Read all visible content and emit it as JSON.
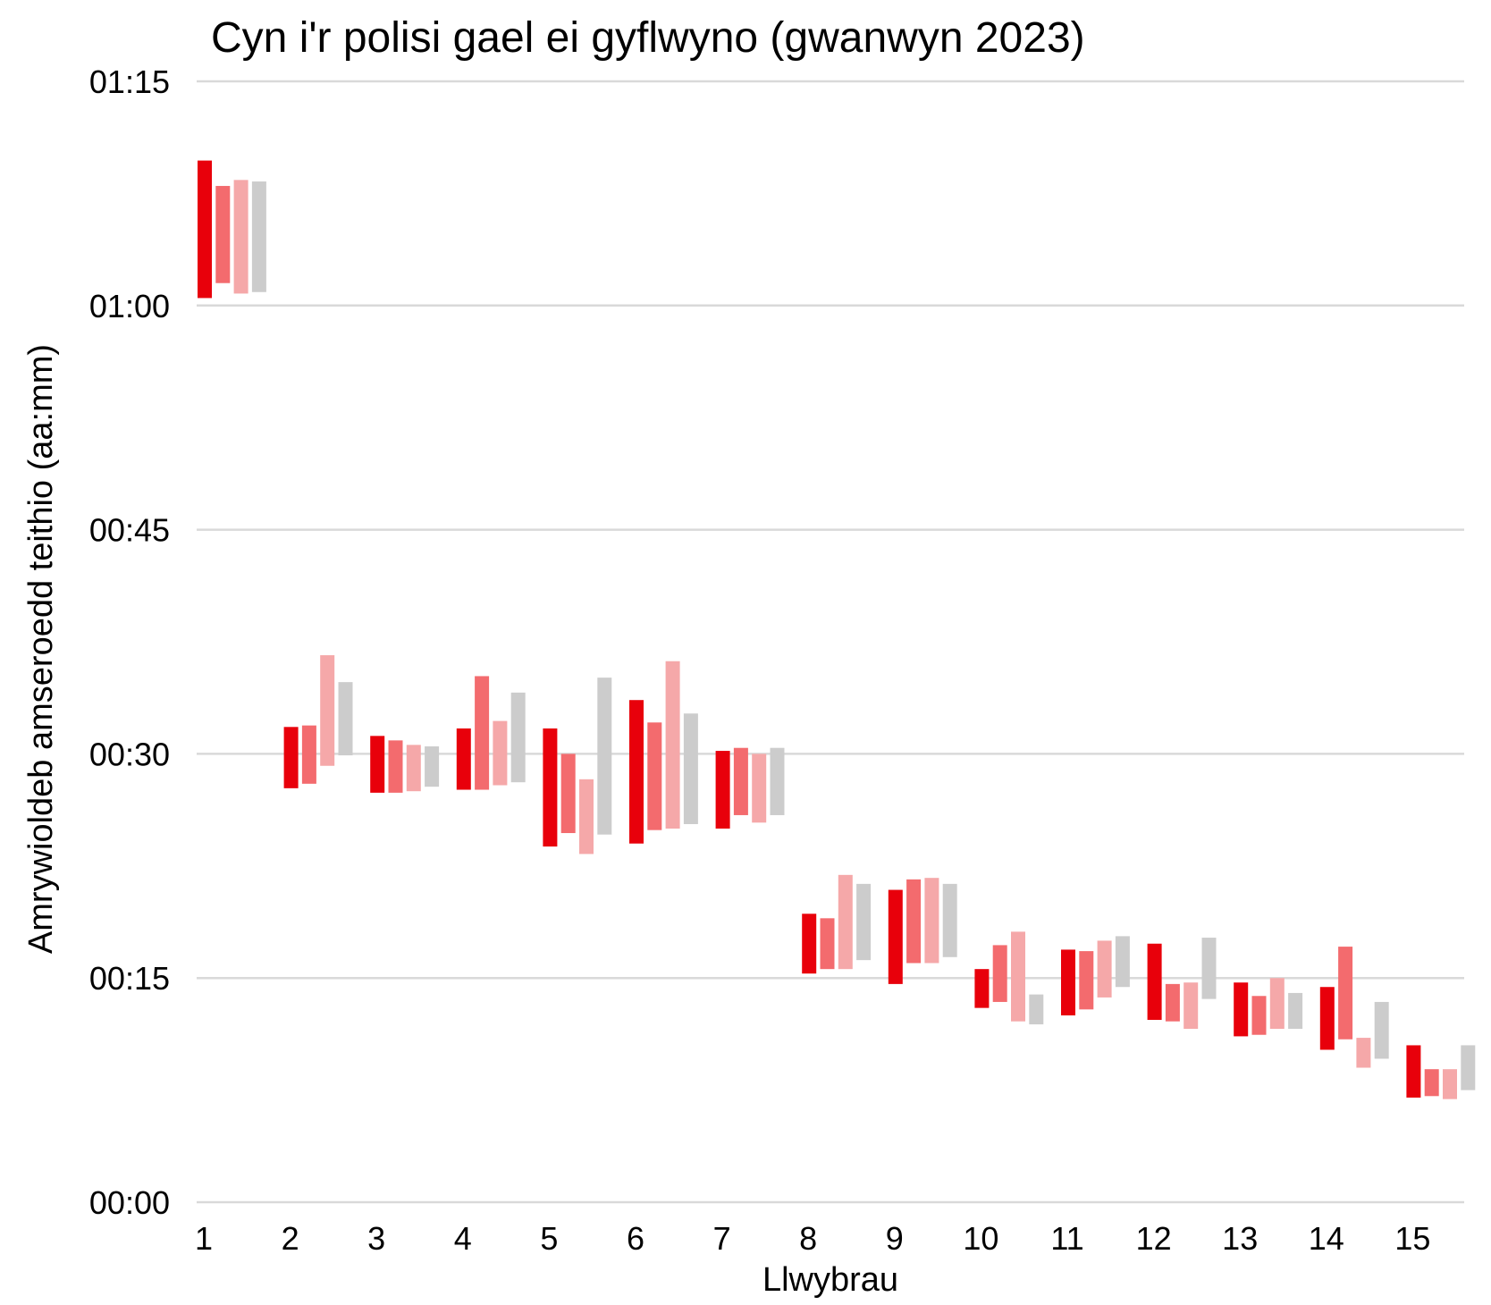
{
  "chart_data": {
    "type": "bar",
    "subtype": "floating-range",
    "title": "Cyn i'r polisi gael ei gyflwyno (gwanwyn 2023)",
    "xlabel": "Llwybrau",
    "ylabel": "Amrywioldeb amseroedd teithio (aa:mm)",
    "ylim_minutes": [
      0,
      75
    ],
    "yticks": [
      {
        "value": 0,
        "label": "00:00"
      },
      {
        "value": 15,
        "label": "00:15"
      },
      {
        "value": 30,
        "label": "00:30"
      },
      {
        "value": 45,
        "label": "00:45"
      },
      {
        "value": 60,
        "label": "01:00"
      },
      {
        "value": 75,
        "label": "01:15"
      }
    ],
    "grid": "horizontal",
    "legend": "none",
    "categories": [
      "1",
      "2",
      "3",
      "4",
      "5",
      "6",
      "7",
      "8",
      "9",
      "10",
      "11",
      "12",
      "13",
      "14",
      "15"
    ],
    "series": [
      {
        "color": "#e8000b",
        "ranges": [
          [
            60.5,
            69.7
          ],
          [
            27.7,
            31.8
          ],
          [
            27.4,
            31.2
          ],
          [
            27.6,
            31.7
          ],
          [
            23.8,
            31.7
          ],
          [
            24.0,
            33.6
          ],
          [
            25.0,
            30.2
          ],
          [
            15.3,
            19.3
          ],
          [
            14.6,
            20.9
          ],
          [
            13.0,
            15.6
          ],
          [
            12.5,
            16.9
          ],
          [
            12.2,
            17.3
          ],
          [
            11.1,
            14.7
          ],
          [
            10.2,
            14.4
          ],
          [
            7.0,
            10.5
          ]
        ]
      },
      {
        "color": "#f36b6e",
        "ranges": [
          [
            61.5,
            68.0
          ],
          [
            28.0,
            31.9
          ],
          [
            27.4,
            30.9
          ],
          [
            27.6,
            35.2
          ],
          [
            24.7,
            30.0
          ],
          [
            24.9,
            32.1
          ],
          [
            25.9,
            30.4
          ],
          [
            15.6,
            19.0
          ],
          [
            16.0,
            21.6
          ],
          [
            13.4,
            17.2
          ],
          [
            12.9,
            16.8
          ],
          [
            12.1,
            14.6
          ],
          [
            11.2,
            13.8
          ],
          [
            10.9,
            17.1
          ],
          [
            7.1,
            8.9
          ]
        ]
      },
      {
        "color": "#f5a8a9",
        "ranges": [
          [
            60.8,
            68.4
          ],
          [
            29.2,
            36.6
          ],
          [
            27.5,
            30.6
          ],
          [
            27.9,
            32.2
          ],
          [
            23.3,
            28.3
          ],
          [
            25.0,
            36.2
          ],
          [
            25.4,
            30.0
          ],
          [
            15.6,
            21.9
          ],
          [
            16.0,
            21.7
          ],
          [
            12.1,
            18.1
          ],
          [
            13.7,
            17.5
          ],
          [
            11.6,
            14.7
          ],
          [
            11.6,
            15.0
          ],
          [
            9.0,
            11.0
          ],
          [
            6.9,
            8.9
          ]
        ]
      },
      {
        "color": "#cccccc",
        "ranges": [
          [
            60.9,
            68.3
          ],
          [
            29.9,
            34.8
          ],
          [
            27.8,
            30.5
          ],
          [
            28.1,
            34.1
          ],
          [
            24.6,
            35.1
          ],
          [
            25.3,
            32.7
          ],
          [
            25.9,
            30.4
          ],
          [
            16.2,
            21.3
          ],
          [
            16.4,
            21.3
          ],
          [
            11.9,
            13.9
          ],
          [
            14.4,
            17.8
          ],
          [
            13.6,
            17.7
          ],
          [
            11.6,
            14.0
          ],
          [
            9.6,
            13.4
          ],
          [
            7.5,
            10.5
          ]
        ]
      }
    ]
  }
}
